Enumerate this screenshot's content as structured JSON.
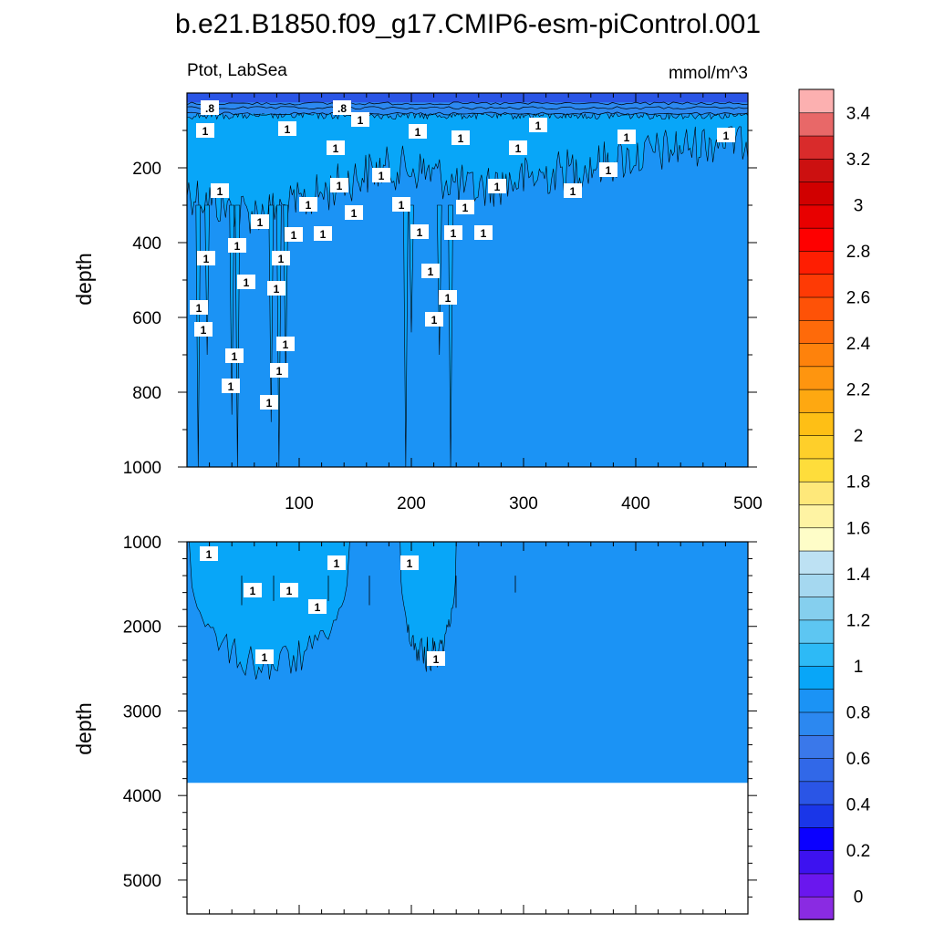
{
  "figure": {
    "title": "b.e21.B1850.f09_g17.CMIP6-esm-piControl.001",
    "variable_region": "Ptot, LabSea",
    "units": "mmol/m^3"
  },
  "colorbar": {
    "levels": [
      "0",
      "0.2",
      "0.4",
      "0.6",
      "0.8",
      "1",
      "1.2",
      "1.4",
      "1.6",
      "1.8",
      "2",
      "2.2",
      "2.4",
      "2.6",
      "2.8",
      "3",
      "3.2",
      "3.4"
    ],
    "colors": [
      "#8a2be2",
      "#6a17ee",
      "#3d12f0",
      "#0b00ff",
      "#1a36e8",
      "#2a55e6",
      "#3168e8",
      "#3a78ea",
      "#2c88f0",
      "#1b93f5",
      "#08a6f8",
      "#2dbaf6",
      "#5dc6f2",
      "#85cfee",
      "#a5d8f0",
      "#bde1f3",
      "#fefdc8",
      "#fef3a3",
      "#fee87a",
      "#fedd3b",
      "#fecf2a",
      "#febf15",
      "#fea811",
      "#fe950f",
      "#fe820c",
      "#fe6a0a",
      "#fe5207",
      "#fe3a05",
      "#fe1e02",
      "#fe0000",
      "#e80000",
      "#d10000",
      "#cc1010",
      "#d92b2b",
      "#e86868",
      "#fcb0b0"
    ]
  },
  "chart_data": [
    {
      "type": "heatmap",
      "panel": "upper",
      "title": "b.e21.B1850.f09_g17.CMIP6-esm-piControl.001",
      "xlabel": "",
      "ylabel": "depth",
      "xlim": [
        0,
        500
      ],
      "ylim": [
        1000,
        0
      ],
      "xticks": [
        "100",
        "200",
        "300",
        "400",
        "500"
      ],
      "yticks": [
        "200",
        "400",
        "600",
        "800",
        "1000"
      ],
      "contour_labels": [
        ".8",
        ".8",
        "1",
        "1",
        "1",
        "1",
        "1",
        "1",
        "1",
        "1",
        "1",
        "1",
        "1",
        "1",
        "1",
        "1",
        "1",
        "1",
        "1",
        "1",
        "1",
        "1",
        "1",
        "1",
        "1",
        "1",
        "1",
        "1",
        "1",
        "1",
        "1",
        "1",
        "1",
        "1",
        "1",
        "1",
        "1",
        "1",
        "1",
        "1",
        "1",
        "1",
        "1"
      ],
      "fill_levels": {
        "surface_band_depth": [
          0,
          60,
          0.8
        ],
        "upper_region_depth": [
          60,
          300,
          1.05
        ],
        "deep_value": 0.95
      }
    },
    {
      "type": "heatmap",
      "panel": "lower",
      "xlabel": "",
      "ylabel": "depth",
      "xlim": [
        0,
        500
      ],
      "ylim": [
        5400,
        1000
      ],
      "yticks": [
        "1000",
        "2000",
        "3000",
        "4000",
        "5000"
      ],
      "ocean_bottom_depth": 3850,
      "contour_labels": [
        "1",
        "1",
        "1",
        "1",
        "1",
        "1",
        "1",
        "1",
        "1"
      ],
      "fill_levels": {
        "high_patch_value": 1.05,
        "background_value": 0.95
      }
    }
  ]
}
